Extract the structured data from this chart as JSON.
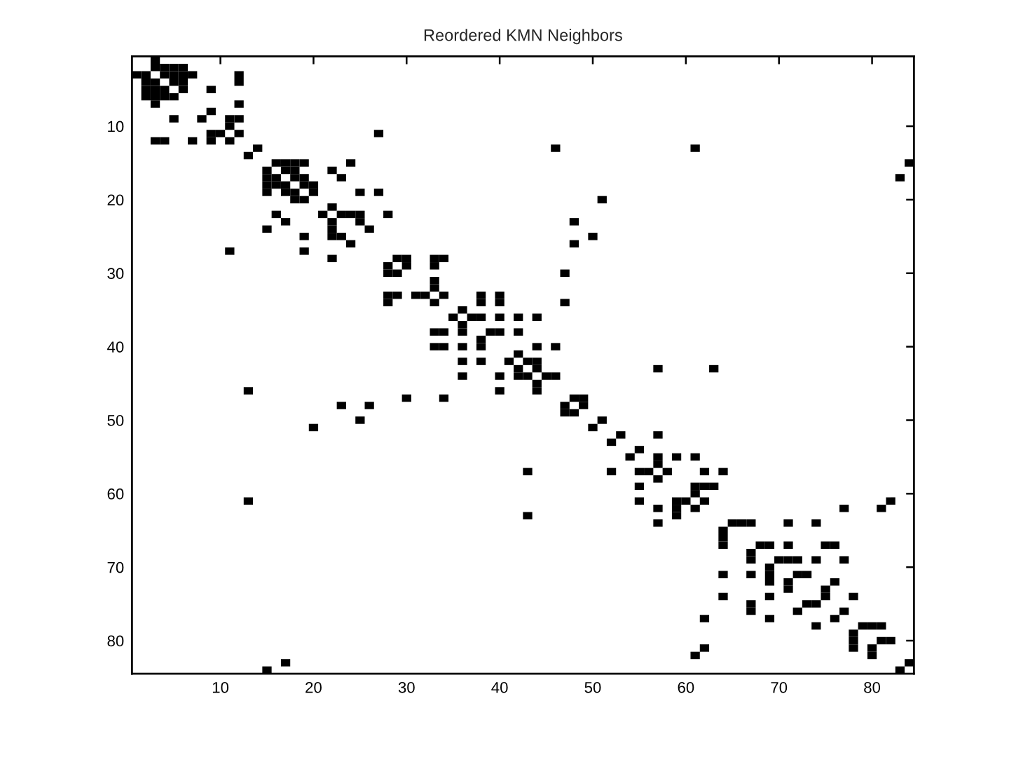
{
  "chart_data": {
    "type": "scatter",
    "title": "Reordered KMN Neighbors",
    "color": "#000000",
    "marker": "square",
    "x": [
      3,
      3,
      4,
      5,
      6,
      1,
      2,
      4,
      5,
      6,
      7,
      12,
      2,
      3,
      5,
      6,
      12,
      2,
      3,
      4,
      6,
      9,
      2,
      3,
      4,
      5,
      3,
      12,
      9,
      5,
      8,
      11,
      12,
      11,
      9,
      10,
      12,
      27,
      3,
      4,
      7,
      9,
      11,
      14,
      46,
      61,
      13,
      16,
      17,
      18,
      19,
      24,
      84,
      15,
      17,
      18,
      22,
      15,
      16,
      18,
      19,
      23,
      83,
      15,
      16,
      17,
      19,
      20,
      15,
      17,
      18,
      20,
      25,
      27,
      18,
      19,
      51,
      22,
      16,
      21,
      23,
      24,
      25,
      28,
      17,
      22,
      25,
      48,
      15,
      22,
      26,
      19,
      22,
      23,
      50,
      24,
      48,
      11,
      19,
      22,
      29,
      30,
      33,
      34,
      28,
      30,
      33,
      28,
      29,
      47,
      33,
      33,
      28,
      29,
      31,
      32,
      34,
      38,
      40,
      28,
      33,
      38,
      40,
      47,
      36,
      35,
      37,
      38,
      40,
      42,
      44,
      36,
      33,
      34,
      36,
      39,
      40,
      42,
      38,
      33,
      34,
      36,
      38,
      44,
      46,
      42,
      36,
      38,
      41,
      43,
      44,
      42,
      44,
      57,
      63,
      36,
      40,
      42,
      43,
      45,
      46,
      44,
      13,
      40,
      44,
      30,
      34,
      48,
      49,
      23,
      26,
      47,
      49,
      47,
      48,
      25,
      51,
      20,
      50,
      53,
      57,
      52,
      55,
      54,
      57,
      59,
      61,
      57,
      43,
      52,
      55,
      56,
      58,
      62,
      64,
      57,
      55,
      61,
      62,
      63,
      61,
      13,
      55,
      59,
      60,
      62,
      82,
      57,
      59,
      61,
      77,
      81,
      43,
      59,
      57,
      65,
      66,
      67,
      71,
      74,
      64,
      64,
      64,
      68,
      69,
      71,
      75,
      76,
      67,
      67,
      70,
      71,
      72,
      74,
      77,
      69,
      64,
      67,
      69,
      72,
      73,
      69,
      71,
      76,
      71,
      75,
      64,
      69,
      75,
      78,
      67,
      73,
      74,
      67,
      72,
      77,
      62,
      69,
      76,
      74,
      79,
      80,
      81,
      78,
      78,
      81,
      82,
      62,
      78,
      80,
      61,
      80,
      17,
      84,
      15,
      83
    ],
    "values": [
      1,
      2,
      2,
      2,
      2,
      3,
      3,
      3,
      3,
      3,
      3,
      3,
      4,
      4,
      4,
      4,
      4,
      5,
      5,
      5,
      5,
      5,
      6,
      6,
      6,
      6,
      7,
      7,
      8,
      9,
      9,
      9,
      9,
      10,
      11,
      11,
      11,
      11,
      12,
      12,
      12,
      12,
      12,
      13,
      13,
      13,
      14,
      15,
      15,
      15,
      15,
      15,
      15,
      16,
      16,
      16,
      16,
      17,
      17,
      17,
      17,
      17,
      17,
      18,
      18,
      18,
      18,
      18,
      19,
      19,
      19,
      19,
      19,
      19,
      20,
      20,
      20,
      21,
      22,
      22,
      22,
      22,
      22,
      22,
      23,
      23,
      23,
      23,
      24,
      24,
      24,
      25,
      25,
      25,
      25,
      26,
      26,
      27,
      27,
      28,
      28,
      28,
      28,
      28,
      29,
      29,
      29,
      30,
      30,
      30,
      31,
      32,
      33,
      33,
      33,
      33,
      33,
      33,
      33,
      34,
      34,
      34,
      34,
      34,
      35,
      36,
      36,
      36,
      36,
      36,
      36,
      37,
      38,
      38,
      38,
      38,
      38,
      38,
      39,
      40,
      40,
      40,
      40,
      40,
      40,
      41,
      42,
      42,
      42,
      42,
      42,
      43,
      43,
      43,
      43,
      44,
      44,
      44,
      44,
      44,
      44,
      45,
      46,
      46,
      46,
      47,
      47,
      47,
      47,
      48,
      48,
      48,
      48,
      49,
      49,
      50,
      50,
      51,
      51,
      52,
      52,
      53,
      54,
      55,
      55,
      55,
      55,
      56,
      57,
      57,
      57,
      57,
      57,
      57,
      57,
      58,
      59,
      59,
      59,
      59,
      60,
      61,
      61,
      61,
      61,
      61,
      61,
      62,
      62,
      62,
      62,
      62,
      63,
      63,
      64,
      64,
      64,
      64,
      64,
      64,
      65,
      66,
      67,
      67,
      67,
      67,
      67,
      67,
      68,
      69,
      69,
      69,
      69,
      69,
      69,
      70,
      71,
      71,
      71,
      71,
      71,
      72,
      72,
      72,
      73,
      73,
      74,
      74,
      74,
      74,
      75,
      75,
      75,
      76,
      76,
      76,
      77,
      77,
      77,
      78,
      78,
      78,
      78,
      79,
      80,
      80,
      80,
      81,
      81,
      81,
      82,
      82,
      83,
      83,
      84,
      84
    ],
    "xlim": [
      0.5,
      84.5
    ],
    "ylim": [
      84.5,
      0.5
    ],
    "xticks": [
      10,
      20,
      30,
      40,
      50,
      60,
      70,
      80
    ],
    "yticks": [
      10,
      20,
      30,
      40,
      50,
      60,
      70,
      80
    ]
  }
}
